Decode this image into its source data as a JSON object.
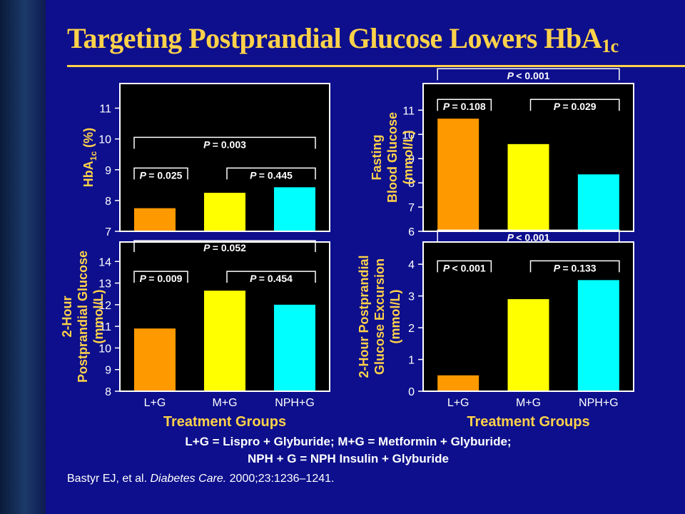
{
  "slide": {
    "title_main": "Targeting Postprandial Glucose Lowers HbA",
    "title_sub": "1c",
    "legend_line1": "L+G = Lispro + Glyburide; M+G = Metformin + Glyburide;",
    "legend_line2": "NPH + G = NPH Insulin + Glyburide",
    "citation_authors": "Bastyr EJ, et al. ",
    "citation_journal": "Diabetes Care.",
    "citation_details": " 2000;23:1236–1241."
  },
  "colors": {
    "background": "#0d0f8c",
    "title": "#ffd24a",
    "axis_label": "#ffd24a",
    "plot_bg": "#000000",
    "plot_border": "#ffffff",
    "bars": [
      "#ff9900",
      "#ffff00",
      "#00ffff"
    ]
  },
  "x_axis_title": "Treatment Groups",
  "chart_data": [
    {
      "type": "bar",
      "ylabel_lines": [
        "HbA1c (%)"
      ],
      "categories": [
        "L+G",
        "M+G",
        "NPH+G"
      ],
      "values": [
        7.75,
        8.25,
        8.43
      ],
      "ylim": [
        7,
        11.8
      ],
      "yticks": [
        7,
        8,
        9,
        10,
        11
      ],
      "show_xticks": false,
      "brackets": [
        {
          "from": 0,
          "to": 2,
          "label": "= 0.003",
          "level": 2
        },
        {
          "from": 0,
          "to": 1,
          "label": "= 0.025",
          "level": 1
        },
        {
          "from": 1,
          "to": 2,
          "label": "= 0.445",
          "level": 1
        }
      ]
    },
    {
      "type": "bar",
      "ylabel_lines": [
        "Fasting",
        "Blood Glucose",
        "(mmol/L)"
      ],
      "categories": [
        "L+G",
        "M+G",
        "NPH+G"
      ],
      "values": [
        10.65,
        9.6,
        8.35
      ],
      "ylim": [
        6,
        12.1
      ],
      "yticks": [
        6,
        7,
        8,
        9,
        10,
        11
      ],
      "show_xticks": false,
      "brackets": [
        {
          "from": 0,
          "to": 2,
          "label": "< 0.001",
          "level": 2
        },
        {
          "from": 0,
          "to": 1,
          "label": "= 0.108",
          "level": 1
        },
        {
          "from": 1,
          "to": 2,
          "label": "= 0.029",
          "level": 1
        }
      ]
    },
    {
      "type": "bar",
      "ylabel_lines": [
        "2-Hour",
        "Postprandial Glucose",
        "(mmol/L)"
      ],
      "categories": [
        "L+G",
        "M+G",
        "NPH+G"
      ],
      "values": [
        10.9,
        12.65,
        12.0
      ],
      "ylim": [
        8,
        14.9
      ],
      "yticks": [
        8,
        9,
        10,
        11,
        12,
        13,
        14
      ],
      "show_xticks": true,
      "brackets": [
        {
          "from": 0,
          "to": 2,
          "label": "= 0.052",
          "level": 2
        },
        {
          "from": 0,
          "to": 1,
          "label": "= 0.009",
          "level": 1
        },
        {
          "from": 1,
          "to": 2,
          "label": "= 0.454",
          "level": 1
        }
      ]
    },
    {
      "type": "bar",
      "ylabel_lines": [
        "2-Hour Postprandial",
        "Glucose Excursion",
        "(mmol/L)"
      ],
      "categories": [
        "L+G",
        "M+G",
        "NPH+G"
      ],
      "values": [
        0.5,
        2.9,
        3.5
      ],
      "ylim": [
        0,
        4.7
      ],
      "yticks": [
        0,
        1,
        2,
        3,
        4
      ],
      "show_xticks": true,
      "brackets": [
        {
          "from": 0,
          "to": 2,
          "label": "< 0.001",
          "level": 2
        },
        {
          "from": 0,
          "to": 1,
          "label": "< 0.001",
          "level": 1
        },
        {
          "from": 1,
          "to": 2,
          "label": "= 0.133",
          "level": 1
        }
      ]
    }
  ]
}
